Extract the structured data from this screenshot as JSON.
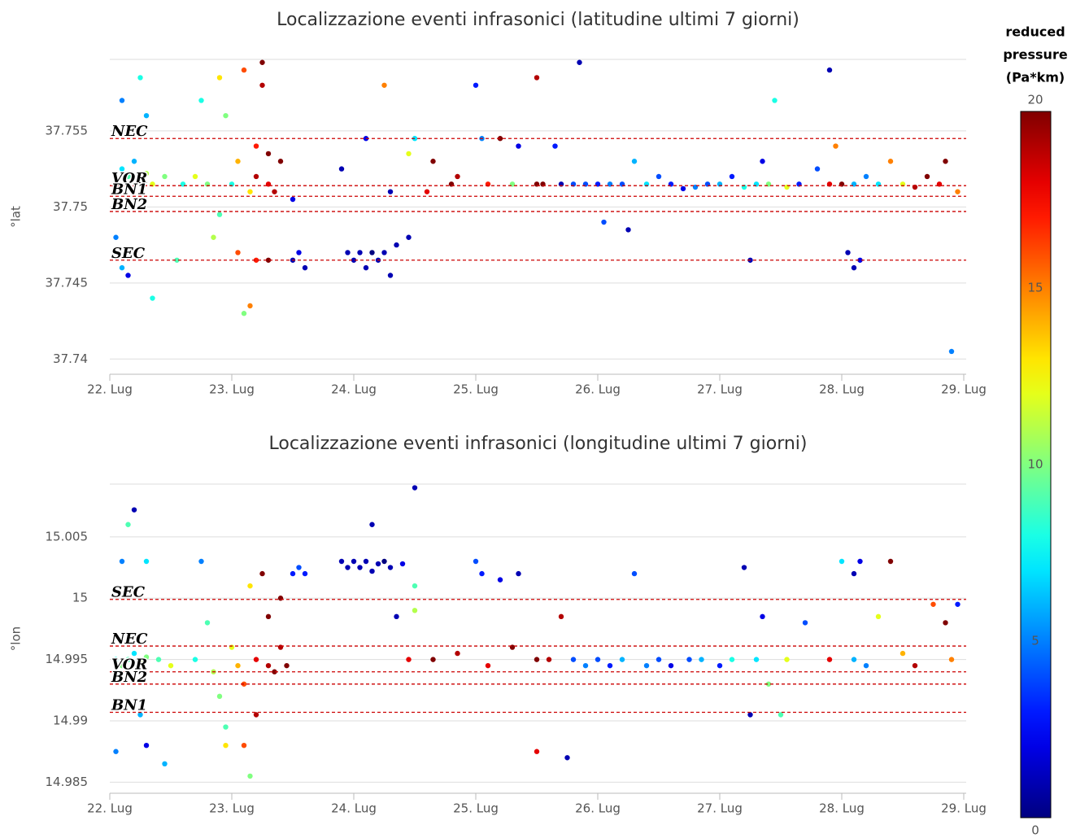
{
  "chart_data": [
    {
      "type": "scatter",
      "title": "Localizzazione eventi infrasonici (latitudine ultimi 7 giorni)",
      "y_label": "°lat",
      "xlim": [
        22,
        29.02
      ],
      "xticks": [
        {
          "value": 22,
          "label": "22. Lug"
        },
        {
          "value": 23,
          "label": "23. Lug"
        },
        {
          "value": 24,
          "label": "24. Lug"
        },
        {
          "value": 25,
          "label": "25. Lug"
        },
        {
          "value": 26,
          "label": "26. Lug"
        },
        {
          "value": 27,
          "label": "27. Lug"
        },
        {
          "value": 28,
          "label": "28. Lug"
        },
        {
          "value": 29,
          "label": "29. Lug"
        }
      ],
      "ylim": [
        37.739,
        37.7597
      ],
      "yticks": [
        37.74,
        37.745,
        37.75,
        37.755
      ],
      "grid": true,
      "reference_lines": [
        {
          "label": "NEC",
          "value": 37.7545,
          "color": "#cc0000"
        },
        {
          "label": "VOR",
          "value": 37.7514,
          "color": "#cc0000"
        },
        {
          "label": "BN1",
          "value": 37.7507,
          "color": "#cc0000"
        },
        {
          "label": "BN2",
          "value": 37.7497,
          "color": "#cc0000"
        },
        {
          "label": "SEC",
          "value": 37.7465,
          "color": "#cc0000"
        }
      ],
      "x": [
        22.05,
        22.1,
        22.15,
        22.2,
        22.25,
        22.3,
        22.35,
        22.45,
        22.1,
        22.25,
        22.3,
        22.05,
        22.1,
        22.15,
        22.35,
        22.55,
        22.6,
        22.7,
        22.75,
        22.8,
        22.85,
        22.9,
        22.95,
        22.9,
        23.0,
        23.05,
        23.05,
        23.1,
        23.1,
        23.15,
        23.2,
        23.2,
        23.25,
        23.25,
        23.3,
        23.3,
        23.35,
        23.4,
        23.2,
        23.3,
        23.15,
        23.5,
        23.5,
        23.55,
        23.6,
        23.95,
        24.0,
        24.05,
        24.1,
        24.15,
        24.2,
        24.25,
        24.3,
        24.35,
        24.45,
        23.9,
        24.1,
        24.25,
        24.3,
        24.45,
        24.5,
        24.6,
        24.65,
        24.8,
        24.85,
        25.0,
        25.05,
        25.1,
        25.2,
        25.3,
        25.35,
        25.5,
        25.55,
        25.5,
        25.65,
        25.7,
        25.8,
        25.85,
        25.9,
        26.0,
        26.05,
        26.1,
        26.2,
        26.25,
        26.3,
        26.4,
        26.5,
        26.6,
        26.7,
        26.8,
        26.9,
        27.0,
        27.1,
        27.2,
        27.25,
        27.3,
        27.35,
        27.4,
        27.45,
        27.55,
        27.65,
        27.8,
        27.9,
        27.95,
        28.0,
        28.05,
        28.1,
        28.15,
        28.1,
        28.2,
        28.3,
        28.4,
        28.5,
        28.6,
        28.7,
        28.8,
        28.85,
        28.9,
        28.95,
        27.9
      ],
      "y": [
        37.7515,
        37.7525,
        37.752,
        37.753,
        37.7518,
        37.7522,
        37.7515,
        37.752,
        37.757,
        37.7585,
        37.756,
        37.748,
        37.746,
        37.7455,
        37.744,
        37.7465,
        37.7515,
        37.752,
        37.757,
        37.7515,
        37.748,
        37.7495,
        37.756,
        37.7585,
        37.7515,
        37.753,
        37.747,
        37.743,
        37.759,
        37.751,
        37.754,
        37.752,
        37.7595,
        37.758,
        37.7515,
        37.7535,
        37.751,
        37.753,
        37.7465,
        37.7465,
        37.7435,
        37.7505,
        37.7465,
        37.747,
        37.746,
        37.747,
        37.7465,
        37.747,
        37.746,
        37.747,
        37.7465,
        37.747,
        37.7455,
        37.7475,
        37.748,
        37.7525,
        37.7545,
        37.758,
        37.751,
        37.7535,
        37.7545,
        37.751,
        37.753,
        37.7515,
        37.752,
        37.758,
        37.7545,
        37.7515,
        37.7545,
        37.7515,
        37.754,
        37.7515,
        37.7515,
        37.7585,
        37.754,
        37.7515,
        37.7515,
        37.7595,
        37.7515,
        37.7515,
        37.749,
        37.7515,
        37.7515,
        37.7485,
        37.753,
        37.7515,
        37.752,
        37.7515,
        37.7512,
        37.7513,
        37.7515,
        37.7515,
        37.752,
        37.7513,
        37.7465,
        37.7515,
        37.753,
        37.7515,
        37.757,
        37.7513,
        37.7515,
        37.7525,
        37.7515,
        37.754,
        37.7515,
        37.747,
        37.746,
        37.7465,
        37.7515,
        37.752,
        37.7515,
        37.753,
        37.7515,
        37.7513,
        37.752,
        37.7515,
        37.753,
        37.7405,
        37.751,
        37.759
      ],
      "values": [
        8,
        7,
        9,
        6,
        10,
        11,
        12,
        10,
        5,
        8,
        6,
        5,
        6,
        2,
        8,
        9,
        8,
        12,
        8,
        10,
        11,
        9,
        10,
        13,
        8,
        14,
        16,
        10,
        16,
        13,
        17,
        19,
        20,
        19,
        18,
        20,
        19,
        20,
        17,
        20,
        15,
        2,
        1,
        2,
        1,
        1,
        1,
        1,
        1,
        0,
        1,
        1,
        1,
        1,
        1,
        1,
        2,
        15,
        1,
        12,
        7,
        18,
        20,
        20,
        19,
        3,
        5,
        17,
        20,
        10,
        2,
        20,
        20,
        19,
        3,
        1,
        4,
        1,
        4,
        3,
        4,
        5,
        4,
        1,
        6,
        7,
        4,
        3,
        2,
        5,
        4,
        6,
        3,
        8,
        1,
        7,
        2,
        10,
        8,
        12,
        3,
        4,
        18,
        15,
        20,
        1,
        1,
        2,
        6,
        5,
        7,
        15,
        12,
        19,
        20,
        18,
        20,
        5,
        15,
        1
      ]
    },
    {
      "type": "scatter",
      "title": "Localizzazione eventi infrasonici (longitudine ultimi 7 giorni)",
      "y_label": "°lon",
      "xlim": [
        22,
        29.02
      ],
      "xticks": [
        {
          "value": 22,
          "label": "22. Lug"
        },
        {
          "value": 23,
          "label": "23. Lug"
        },
        {
          "value": 24,
          "label": "24. Lug"
        },
        {
          "value": 25,
          "label": "25. Lug"
        },
        {
          "value": 26,
          "label": "26. Lug"
        },
        {
          "value": 27,
          "label": "27. Lug"
        },
        {
          "value": 28,
          "label": "28. Lug"
        },
        {
          "value": 29,
          "label": "29. Lug"
        }
      ],
      "ylim": [
        14.9841,
        15.0093
      ],
      "yticks": [
        14.985,
        14.99,
        14.995,
        15,
        15.005
      ],
      "grid": true,
      "reference_lines": [
        {
          "label": "SEC",
          "value": 14.9999,
          "color": "#cc0000"
        },
        {
          "label": "NEC",
          "value": 14.9961,
          "color": "#cc0000"
        },
        {
          "label": "VOR",
          "value": 14.994,
          "color": "#cc0000"
        },
        {
          "label": "BN2",
          "value": 14.993,
          "color": "#cc0000"
        },
        {
          "label": "BN1",
          "value": 14.9907,
          "color": "#cc0000"
        }
      ],
      "x": [
        22.05,
        22.1,
        22.15,
        22.2,
        22.25,
        22.3,
        22.4,
        22.5,
        22.1,
        22.15,
        22.2,
        22.3,
        22.05,
        22.3,
        22.45,
        22.25,
        22.7,
        22.75,
        22.8,
        22.85,
        22.9,
        22.95,
        22.95,
        23.0,
        23.05,
        23.1,
        23.1,
        23.15,
        23.2,
        23.25,
        23.3,
        23.3,
        23.35,
        23.4,
        23.4,
        23.45,
        23.2,
        23.15,
        23.5,
        23.55,
        23.6,
        23.9,
        23.95,
        24.0,
        24.05,
        24.1,
        24.15,
        24.2,
        24.25,
        24.3,
        24.4,
        24.15,
        24.5,
        24.35,
        24.5,
        24.45,
        24.5,
        24.65,
        24.85,
        25.0,
        25.05,
        25.1,
        25.2,
        25.3,
        25.35,
        25.5,
        25.5,
        25.6,
        25.7,
        25.75,
        25.8,
        25.9,
        26.0,
        26.1,
        26.2,
        26.3,
        26.4,
        26.5,
        26.6,
        26.75,
        26.85,
        27.0,
        27.1,
        27.2,
        27.25,
        27.3,
        27.35,
        27.4,
        27.5,
        27.55,
        27.7,
        27.9,
        28.0,
        28.1,
        28.15,
        28.1,
        28.2,
        28.3,
        28.4,
        28.5,
        28.6,
        28.75,
        28.85,
        28.9,
        28.95
      ],
      "y": [
        14.995,
        14.9945,
        14.995,
        14.9955,
        14.9948,
        14.9952,
        14.995,
        14.9945,
        15.003,
        15.006,
        15.0072,
        15.003,
        14.9875,
        14.988,
        14.9865,
        14.9905,
        14.995,
        15.003,
        14.998,
        14.994,
        14.992,
        14.988,
        14.9895,
        14.996,
        14.9945,
        14.993,
        14.988,
        15.001,
        14.995,
        15.002,
        14.9945,
        14.9985,
        14.994,
        14.996,
        15.0,
        14.9945,
        14.9905,
        14.9855,
        15.002,
        15.0025,
        15.002,
        15.003,
        15.0025,
        15.003,
        15.0025,
        15.003,
        15.0022,
        15.0028,
        15.003,
        15.0025,
        15.0028,
        15.006,
        15.009,
        14.9985,
        14.999,
        14.995,
        15.001,
        14.995,
        14.9955,
        15.003,
        15.002,
        14.9945,
        15.0015,
        14.996,
        15.002,
        14.995,
        14.9875,
        14.995,
        14.9985,
        14.987,
        14.995,
        14.9945,
        14.995,
        14.9945,
        14.995,
        15.002,
        14.9945,
        14.995,
        14.9945,
        14.995,
        14.995,
        14.9945,
        14.995,
        15.0025,
        14.9905,
        14.995,
        14.9985,
        14.993,
        14.9905,
        14.995,
        14.998,
        14.995,
        15.003,
        15.002,
        15.003,
        14.995,
        14.9945,
        14.9985,
        15.003,
        14.9955,
        14.9945,
        14.9995,
        14.998,
        14.995,
        14.9995
      ],
      "values": [
        8,
        10,
        9,
        7,
        11,
        10,
        9,
        12,
        5,
        9,
        1,
        7,
        5,
        2,
        6,
        6,
        8,
        5,
        9,
        11,
        10,
        13,
        9,
        12,
        14,
        16,
        16,
        13,
        18,
        20,
        19,
        20,
        20,
        19,
        20,
        20,
        19,
        10,
        3,
        4,
        3,
        1,
        1,
        1,
        1,
        1,
        1,
        1,
        0,
        1,
        2,
        1,
        1,
        1,
        11,
        18,
        9,
        20,
        19,
        4,
        3,
        18,
        2,
        20,
        1,
        20,
        18,
        19,
        19,
        1,
        4,
        5,
        4,
        3,
        6,
        4,
        5,
        4,
        2,
        4,
        6,
        3,
        8,
        1,
        1,
        7,
        2,
        10,
        9,
        12,
        4,
        18,
        7,
        1,
        2,
        6,
        5,
        12,
        20,
        14,
        19,
        16,
        20,
        15,
        3
      ]
    }
  ],
  "colorbar": {
    "title": [
      "reduced",
      "pressure",
      "(Pa*km)"
    ],
    "lim": [
      0,
      20
    ],
    "ticks": [
      0,
      5,
      10,
      15,
      20
    ],
    "colormap": "jet"
  }
}
